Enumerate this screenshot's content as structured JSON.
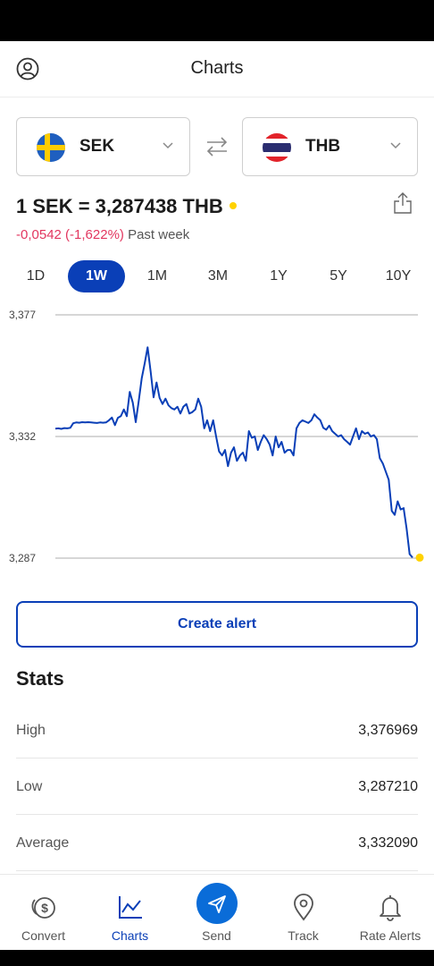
{
  "header": {
    "title": "Charts"
  },
  "from_currency": {
    "code": "SEK"
  },
  "to_currency": {
    "code": "THB"
  },
  "rate": {
    "text": "1 SEK = 3,287438 THB",
    "change": "-0,0542 (-1,622%)",
    "period_label": "Past week"
  },
  "periods": [
    "1D",
    "1W",
    "1M",
    "3M",
    "1Y",
    "5Y",
    "10Y"
  ],
  "active_period": "1W",
  "create_alert_label": "Create alert",
  "stats": {
    "title": "Stats",
    "rows": [
      {
        "label": "High",
        "value": "3,376969"
      },
      {
        "label": "Low",
        "value": "3,287210"
      },
      {
        "label": "Average",
        "value": "3,332090"
      }
    ]
  },
  "nav": [
    {
      "label": "Convert",
      "icon": "convert-icon"
    },
    {
      "label": "Charts",
      "icon": "charts-icon"
    },
    {
      "label": "Send",
      "icon": "send-icon"
    },
    {
      "label": "Track",
      "icon": "location-pin-icon"
    },
    {
      "label": "Rate Alerts",
      "icon": "bell-icon"
    }
  ],
  "colors": {
    "accent": "#0a3fb7",
    "negative": "#e2365f",
    "live_dot": "#ffd200"
  },
  "chart_data": {
    "type": "line",
    "y_ticks": [
      "3,377",
      "3,332",
      "3,287"
    ],
    "ylim": [
      3.287,
      3.377
    ],
    "grid": true,
    "series": [
      {
        "values": [
          3.3349,
          3.335,
          3.3348,
          3.3351,
          3.335,
          3.3352,
          3.3369,
          3.3372,
          3.3371,
          3.3373,
          3.3372,
          3.3373,
          3.3372,
          3.3371,
          3.337,
          3.3372,
          3.3371,
          3.3372,
          3.338,
          3.339,
          3.3362,
          3.3389,
          3.3395,
          3.342,
          3.3395,
          3.3485,
          3.3445,
          3.3373,
          3.345,
          3.3535,
          3.359,
          3.365,
          3.356,
          3.3465,
          3.352,
          3.3463,
          3.344,
          3.346,
          3.3435,
          3.3425,
          3.342,
          3.343,
          3.3405,
          3.343,
          3.344,
          3.3405,
          3.341,
          3.342,
          3.346,
          3.343,
          3.335,
          3.338,
          3.334,
          3.338,
          3.332,
          3.3265,
          3.325,
          3.327,
          3.321,
          3.326,
          3.328,
          3.323,
          3.325,
          3.326,
          3.323,
          3.334,
          3.3315,
          3.332,
          3.327,
          3.33,
          3.3325,
          3.331,
          3.329,
          3.325,
          3.332,
          3.328,
          3.33,
          3.326,
          3.327,
          3.327,
          3.325,
          3.335,
          3.337,
          3.338,
          3.3375,
          3.337,
          3.338,
          3.3402,
          3.339,
          3.338,
          3.3352,
          3.3345,
          3.336,
          3.334,
          3.333,
          3.332,
          3.3325,
          3.331,
          3.33,
          3.329,
          3.332,
          3.335,
          3.331,
          3.334,
          3.333,
          3.3335,
          3.332,
          3.3325,
          3.331,
          3.324,
          3.322,
          3.319,
          3.316,
          3.3045,
          3.303,
          3.308,
          3.305,
          3.3055,
          3.298,
          3.2885,
          3.2872
        ]
      }
    ]
  }
}
